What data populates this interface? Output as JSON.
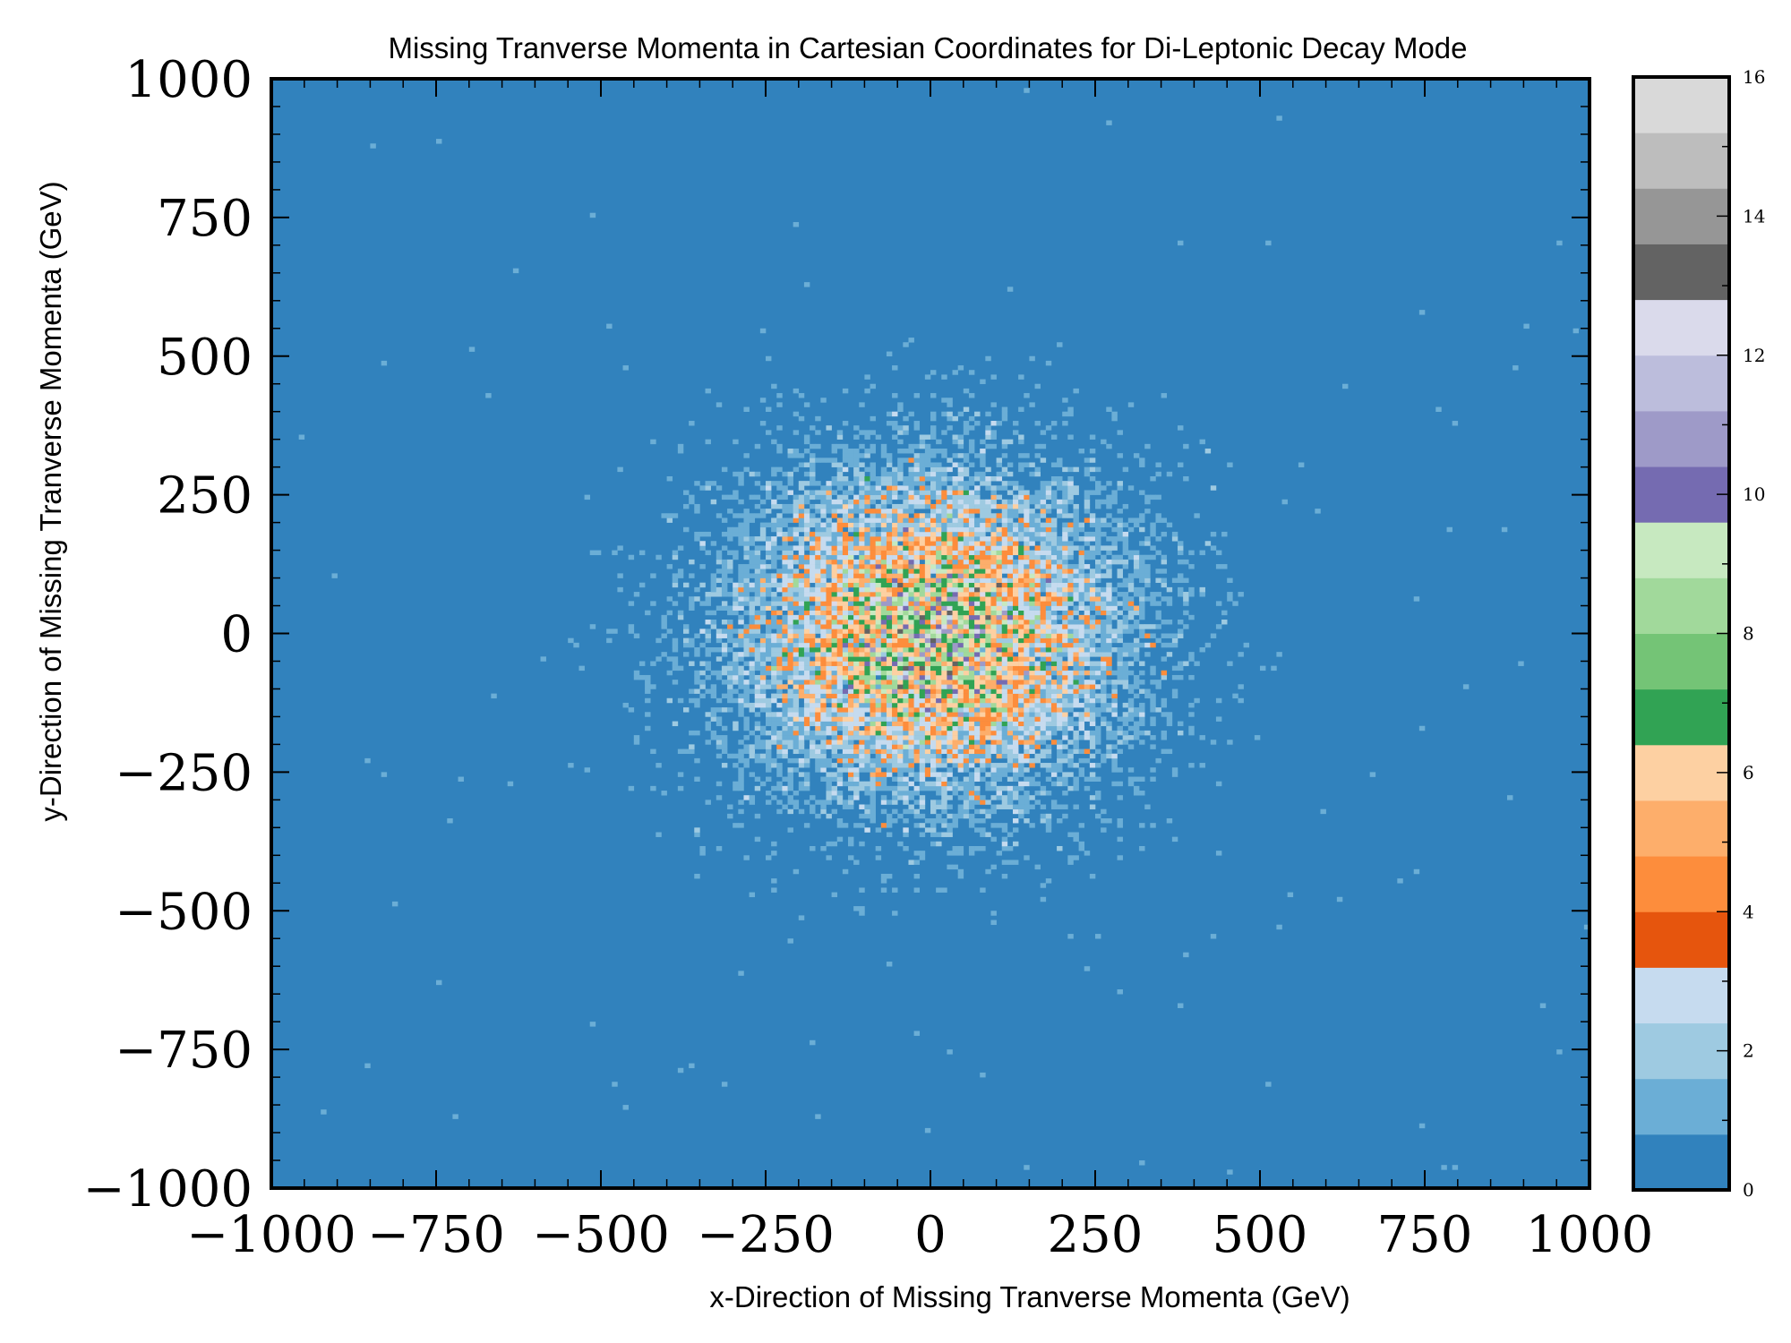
{
  "chart_data": {
    "type": "heatmap",
    "title": "Missing Tranverse Momenta in Cartesian Coordinates for Di-Leptonic Decay Mode",
    "xlabel": "x-Direction of Missing Tranverse Momenta (GeV)",
    "ylabel": "y-Direction of Missing Tranverse Momenta (GeV)",
    "xlim": [
      -1000,
      1000
    ],
    "ylim": [
      -1000,
      1000
    ],
    "x_ticks": [
      "−1000",
      "−750",
      "−500",
      "−250",
      "0",
      "250",
      "500",
      "750",
      "1000"
    ],
    "y_ticks": [
      "−1000",
      "−750",
      "−500",
      "−250",
      "0",
      "250",
      "500",
      "750",
      "1000"
    ],
    "x_tick_values": [
      -1000,
      -750,
      -500,
      -250,
      0,
      250,
      500,
      750,
      1000
    ],
    "y_tick_values": [
      -1000,
      -750,
      -500,
      -250,
      0,
      250,
      500,
      750,
      1000
    ],
    "grid": false,
    "distribution": {
      "center": [
        0,
        0
      ],
      "approx_spread_gev": 150,
      "peak_count": 8
    },
    "colorbar": {
      "min": 0,
      "max": 16,
      "ticks": [
        "0",
        "2",
        "4",
        "6",
        "8",
        "10",
        "12",
        "14",
        "16"
      ],
      "tick_values": [
        0,
        2,
        4,
        6,
        8,
        10,
        12,
        14,
        16
      ],
      "colors": [
        "#3182bd",
        "#6baed6",
        "#9ecae1",
        "#c6dbef",
        "#e6550d",
        "#fd8d3c",
        "#fdae6b",
        "#fdd0a2",
        "#31a354",
        "#74c476",
        "#a1d99b",
        "#c7e9c0",
        "#756bb1",
        "#9e9ac8",
        "#bcbddc",
        "#dadaeb",
        "#636363",
        "#969696",
        "#bdbdbd",
        "#d9d9d9"
      ]
    }
  }
}
